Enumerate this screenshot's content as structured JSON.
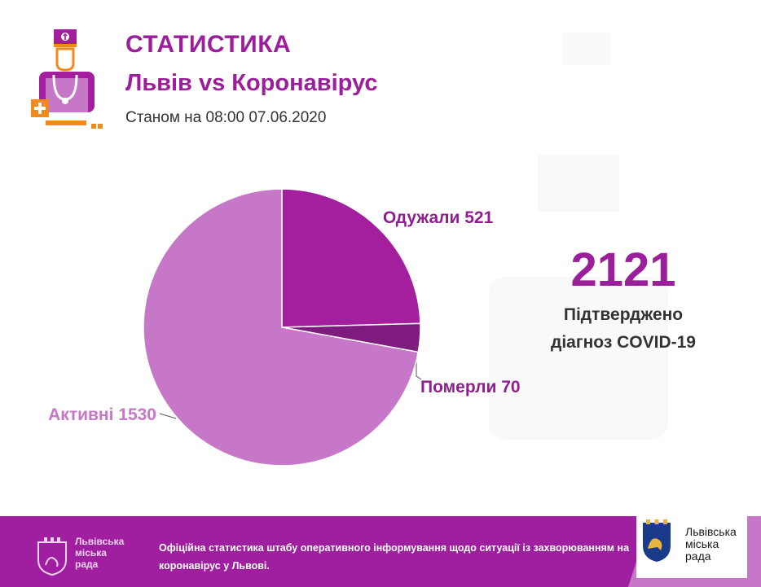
{
  "header": {
    "title": "СТАТИСТИКА",
    "subtitle": "Львів vs Коронавірус",
    "date": "Станом на 08:00 07.06.2020"
  },
  "summary": {
    "total": "2121",
    "label_line1": "Підтверджено",
    "label_line2": "діагноз COVID-19"
  },
  "chart_data": {
    "type": "pie",
    "slices": [
      {
        "label": "Одужали 521",
        "value": 521,
        "color": "#a31f9d"
      },
      {
        "label": "Померли 70",
        "value": 70,
        "color": "#7f1a7f"
      },
      {
        "label": "Активні 1530",
        "value": 1530,
        "color": "#c677c8"
      }
    ],
    "label_colors": {
      "Одужали 521": "#8e1f8e",
      "Померли 70": "#8e1f8e",
      "Активні 1530": "#c677c8"
    }
  },
  "footer": {
    "left_logo_text_line1": "Львівська",
    "left_logo_text_line2": "міська",
    "left_logo_text_line3": "рада",
    "text_line1": "Офіційна статистика штабу оперативного інформування щодо ситуації із захворюванням на",
    "text_line2": "коронавірус у Львові.",
    "badge_line1": "Львівська",
    "badge_line2": "міська",
    "badge_line3": "рада"
  },
  "colors": {
    "accent": "#9b1f9a",
    "footer": "#a01fa0",
    "orange": "#f08a1c"
  }
}
